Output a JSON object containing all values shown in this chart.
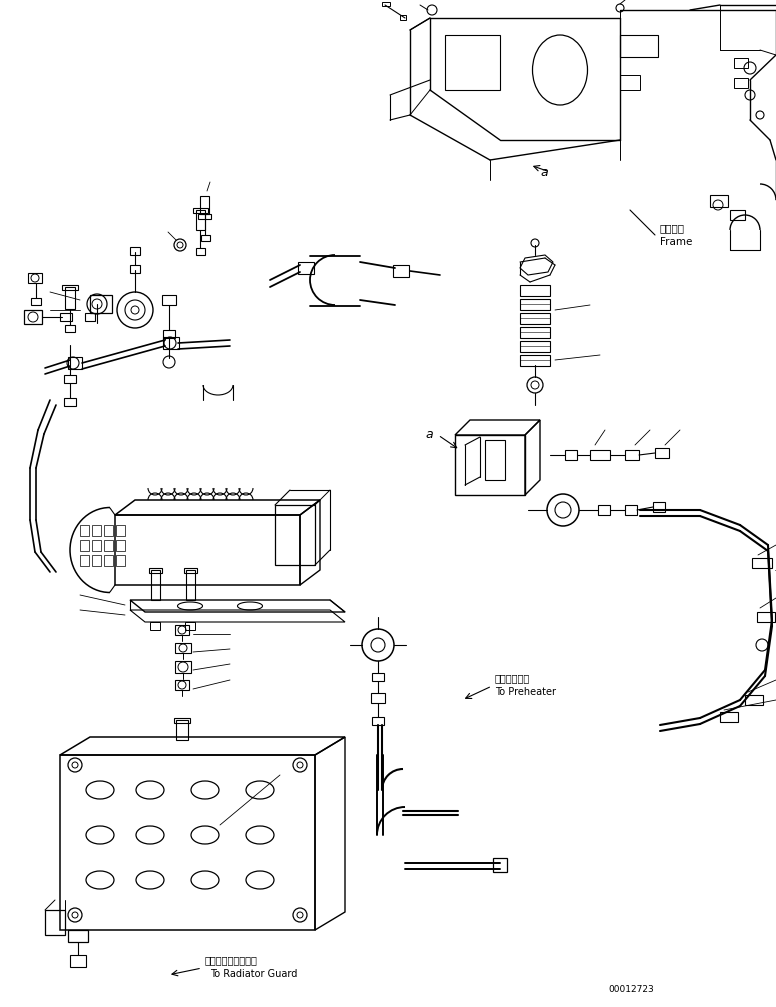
{
  "background_color": "#ffffff",
  "line_color": "#000000",
  "part_number": "00012723",
  "labels": {
    "frame_jp": "フレーム",
    "frame_en": "Frame",
    "preheater_jp": "プレヒータヘ",
    "preheater_en": "To Preheater",
    "radiator_jp": "ラジエータガードヘ",
    "radiator_en": "To Radiator Guard",
    "label_a": "a"
  },
  "fig_width": 7.76,
  "fig_height": 10.07,
  "dpi": 100
}
